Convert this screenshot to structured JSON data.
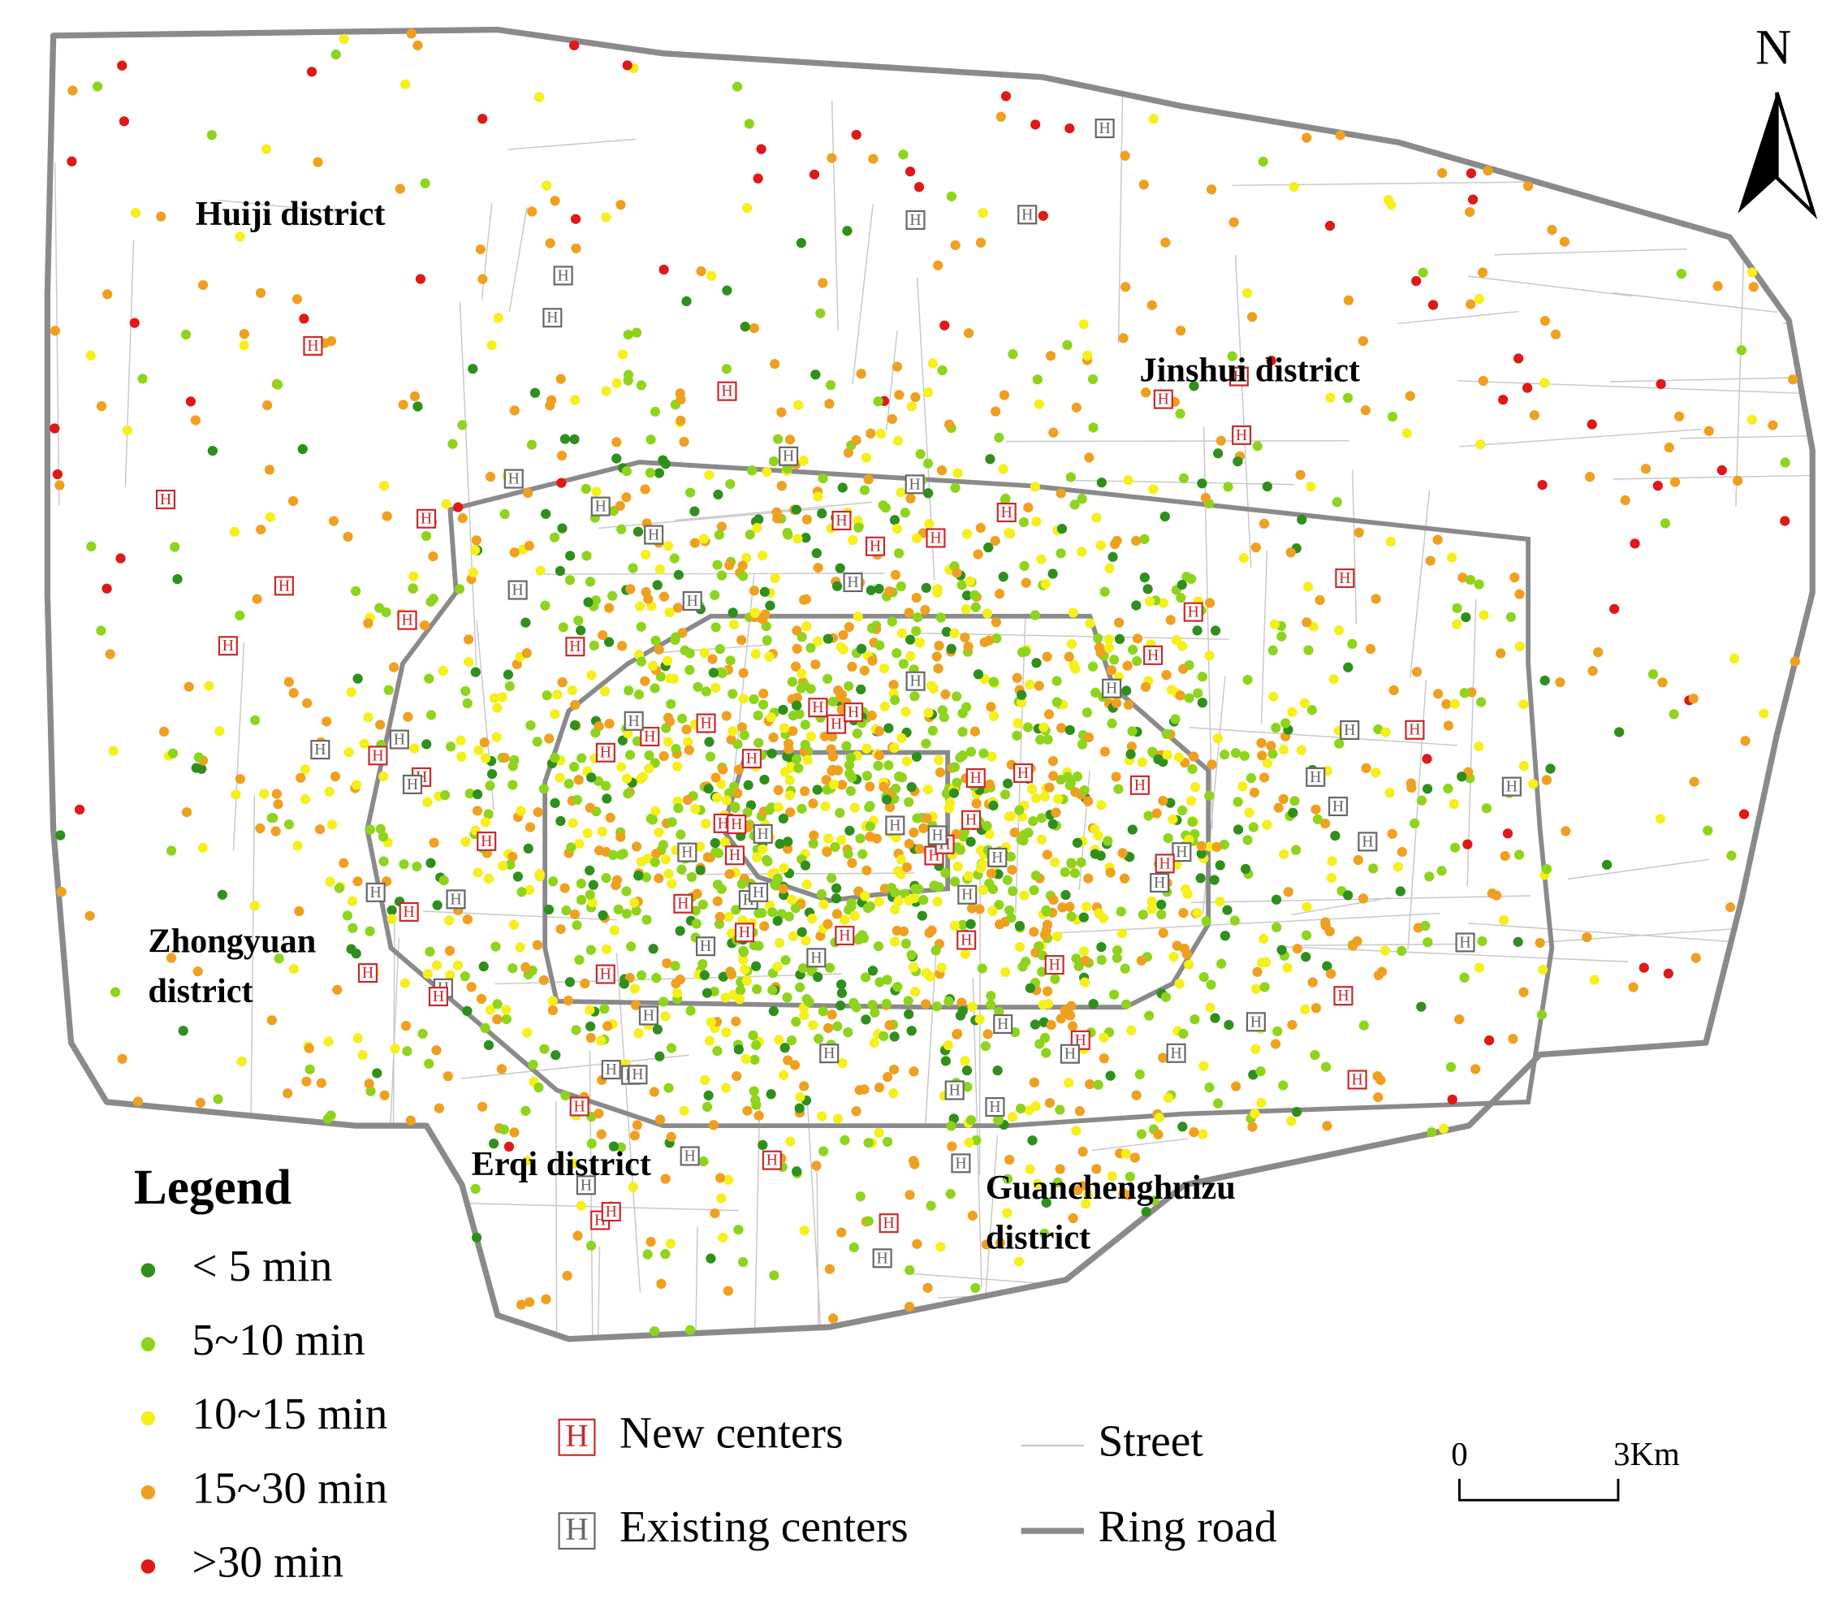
{
  "north": "N",
  "districts": [
    {
      "lines": [
        "Huiji district"
      ]
    },
    {
      "lines": [
        "Jinshui district"
      ]
    },
    {
      "lines": [
        "Zhongyuan",
        "district"
      ]
    },
    {
      "lines": [
        "Erqi district"
      ]
    },
    {
      "lines": [
        "Guanchenghuizu",
        "district"
      ]
    }
  ],
  "center_symbol": "H",
  "legend": {
    "title": "Legend",
    "classes": [
      {
        "label": "< 5 min",
        "color": "#2f8f1c"
      },
      {
        "label": "5~10 min",
        "color": "#8fd41c"
      },
      {
        "label": "10~15 min",
        "color": "#f5ef1a"
      },
      {
        "label": "15~30 min",
        "color": "#f0a020"
      },
      {
        "label": ">30 min",
        "color": "#e01818"
      }
    ],
    "centers": [
      {
        "label": "New centers",
        "color": "#c8282c"
      },
      {
        "label": "Existing centers",
        "color": "#666666"
      }
    ],
    "lines": [
      {
        "label": "Street",
        "color": "#c8c8c8"
      },
      {
        "label": "Ring road",
        "color": "#8a8a8a"
      }
    ]
  },
  "scale": {
    "labels": [
      "0",
      "3Km"
    ]
  }
}
